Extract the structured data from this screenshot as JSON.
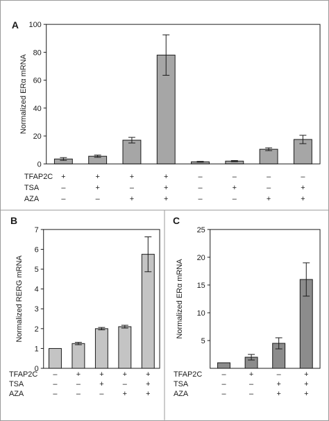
{
  "chart_data": [
    {
      "panel": "A",
      "type": "bar",
      "ylabel": "Normalized ERα mRNA",
      "ylim": [
        0,
        100
      ],
      "yticks": [
        0,
        20,
        40,
        60,
        80,
        100
      ],
      "values": [
        3.5,
        5.5,
        17,
        78,
        1.5,
        2,
        10.5,
        17.5
      ],
      "errors": [
        1,
        0.8,
        2,
        14.5,
        0.3,
        0.4,
        1,
        3
      ],
      "bar_color": "#a6a6a6",
      "conditions": [
        {
          "name": "TFAP2C",
          "signs": [
            "+",
            "+",
            "+",
            "+",
            "–",
            "–",
            "–",
            "–"
          ]
        },
        {
          "name": "TSA",
          "signs": [
            "–",
            "+",
            "–",
            "+",
            "–",
            "+",
            "–",
            "+"
          ]
        },
        {
          "name": "AZA",
          "signs": [
            "–",
            "–",
            "+",
            "+",
            "–",
            "–",
            "+",
            "+"
          ]
        }
      ]
    },
    {
      "panel": "B",
      "type": "bar",
      "ylabel": "Normalized RERG mRNA",
      "ylim": [
        0,
        7
      ],
      "yticks": [
        0,
        1,
        2,
        3,
        4,
        5,
        6,
        7
      ],
      "values": [
        1,
        1.25,
        2,
        2.1,
        5.75
      ],
      "errors": [
        0,
        0.06,
        0.06,
        0.07,
        0.88
      ],
      "bar_color": "#c4c4c4",
      "conditions": [
        {
          "name": "TFAP2C",
          "signs": [
            "–",
            "+",
            "+",
            "+",
            "+"
          ]
        },
        {
          "name": "TSA",
          "signs": [
            "–",
            "–",
            "+",
            "–",
            "+"
          ]
        },
        {
          "name": "AZA",
          "signs": [
            "–",
            "–",
            "–",
            "+",
            "+"
          ]
        }
      ]
    },
    {
      "panel": "C",
      "type": "bar",
      "ylabel": "Normalized ERα mRNA",
      "ylim": [
        0,
        25
      ],
      "yticks": [
        5,
        10,
        15,
        20,
        25
      ],
      "values": [
        1,
        2,
        4.5,
        16
      ],
      "errors": [
        0,
        0.5,
        1,
        3
      ],
      "bar_color": "#8c8c8c",
      "conditions": [
        {
          "name": "TFAP2C",
          "signs": [
            "–",
            "+",
            "–",
            "+"
          ]
        },
        {
          "name": "TSA",
          "signs": [
            "–",
            "–",
            "+",
            "+"
          ]
        },
        {
          "name": "AZA",
          "signs": [
            "–",
            "–",
            "+",
            "+"
          ]
        }
      ]
    }
  ]
}
